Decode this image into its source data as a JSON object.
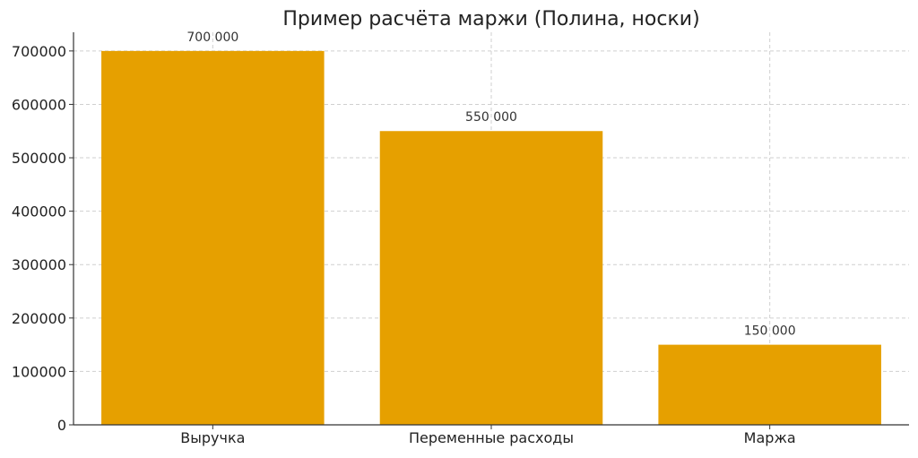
{
  "chart_data": {
    "type": "bar",
    "title": "Пример расчёта маржи (Полина, носки)",
    "xlabel": "",
    "ylabel": "",
    "categories": [
      "Выручка",
      "Переменные расходы",
      "Маржа"
    ],
    "values": [
      700000,
      550000,
      150000
    ],
    "data_labels": [
      "700 000",
      "550 000",
      "150 000"
    ],
    "ylim": [
      0,
      735000
    ],
    "yticks": [
      0,
      100000,
      200000,
      300000,
      400000,
      500000,
      600000,
      700000
    ],
    "ytick_labels": [
      "0",
      "100000",
      "200000",
      "300000",
      "400000",
      "500000",
      "600000",
      "700000"
    ],
    "bar_color": "#E6A000",
    "grid": true,
    "legend": "none"
  }
}
